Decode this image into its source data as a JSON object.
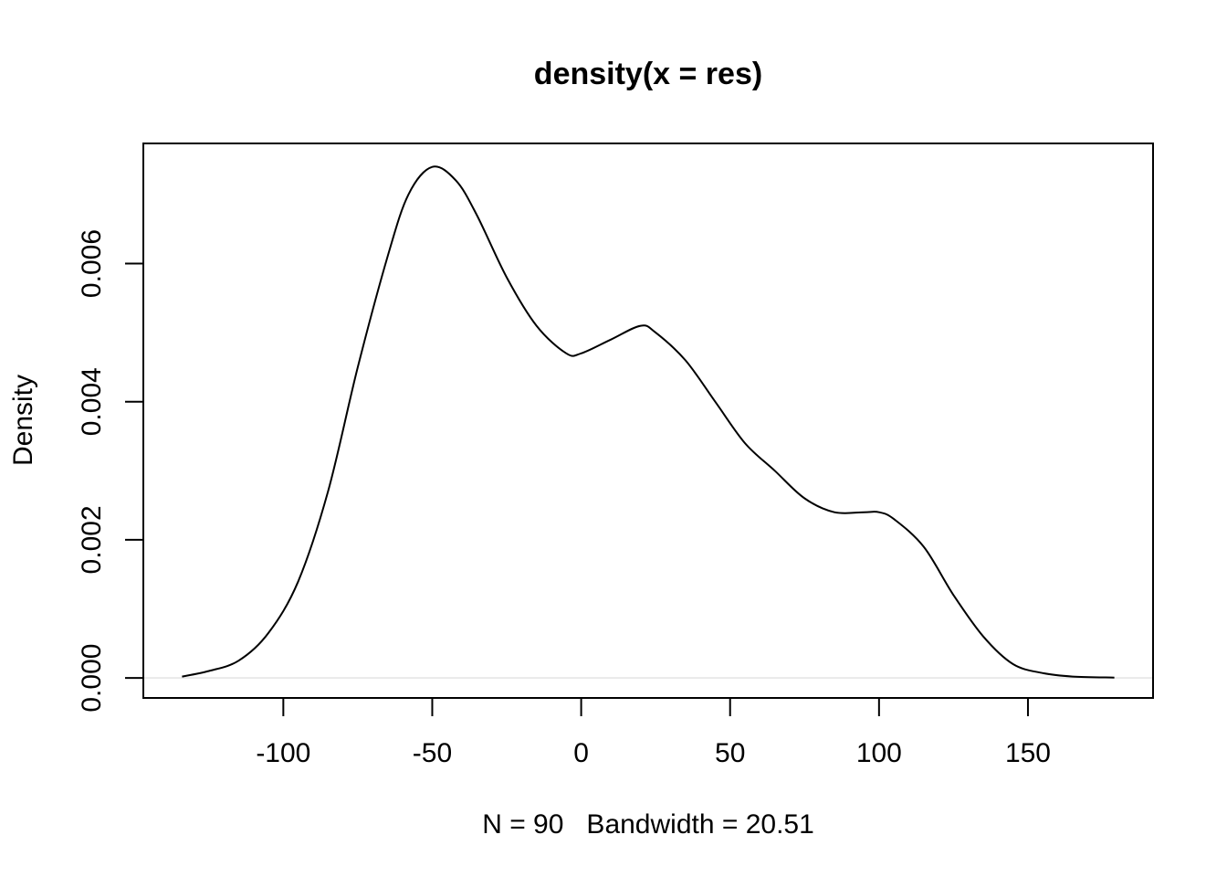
{
  "chart_data": {
    "type": "line",
    "title": "density(x = res)",
    "xlabel": "N = 90   Bandwidth = 20.51",
    "ylabel": "Density",
    "xlim": [
      -147,
      192
    ],
    "ylim": [
      -0.00029,
      0.00774
    ],
    "x_ticks": [
      -100,
      -50,
      0,
      50,
      100,
      150
    ],
    "x_tick_labels": [
      "-100",
      "-50",
      "0",
      "50",
      "100",
      "150"
    ],
    "y_ticks": [
      0,
      0.002,
      0.004,
      0.006
    ],
    "y_tick_labels": [
      "0.000",
      "0.002",
      "0.004",
      "0.006"
    ],
    "grid": false,
    "zero_line": true,
    "series": [
      {
        "x": [
          -134,
          -125,
          -115,
          -105,
          -95,
          -85,
          -75,
          -65,
          -58,
          -50,
          -42,
          -35,
          -25,
          -15,
          -5,
          0,
          10,
          20,
          25,
          35,
          45,
          55,
          65,
          75,
          85,
          95,
          100,
          105,
          115,
          125,
          135,
          145,
          155,
          165,
          179
        ],
        "y": [
          2e-05,
          0.0001,
          0.00025,
          0.00065,
          0.0014,
          0.0027,
          0.0045,
          0.0061,
          0.007,
          0.0074,
          0.0072,
          0.0067,
          0.0058,
          0.0051,
          0.0047,
          0.0047,
          0.0049,
          0.0051,
          0.005,
          0.0046,
          0.004,
          0.0034,
          0.003,
          0.0026,
          0.0024,
          0.0024,
          0.0024,
          0.0023,
          0.0019,
          0.0012,
          0.0006,
          0.0002,
          7e-05,
          2e-05,
          5e-06
        ]
      }
    ]
  }
}
